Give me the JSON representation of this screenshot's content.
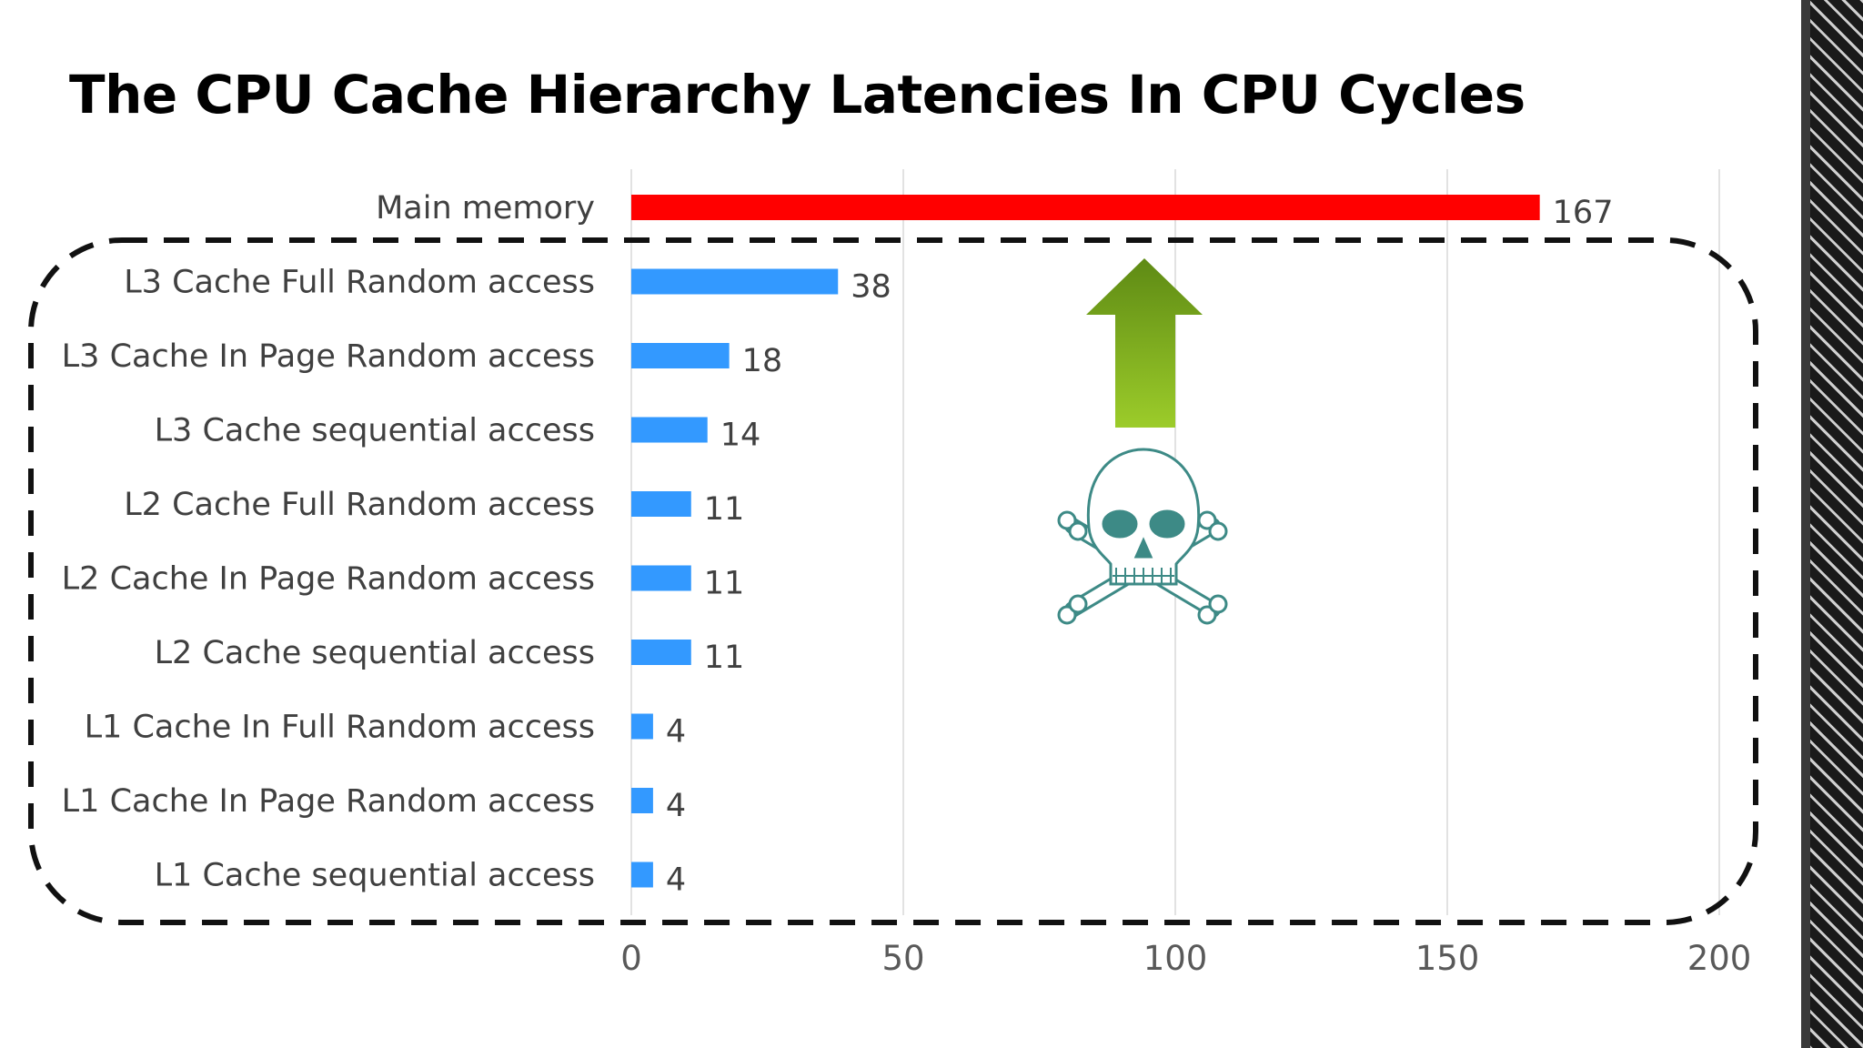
{
  "slide": {
    "title": "The CPU Cache Hierarchy Latencies In CPU Cycles"
  },
  "decorations": {
    "arrow": {
      "name": "up-arrow-icon",
      "color": "#8cbf1f"
    },
    "skull": {
      "name": "skull-and-crossbones-icon",
      "color": "#3d8a86"
    },
    "dashed_group": {
      "name": "cache-group-dashed-outline",
      "color": "#111111"
    }
  },
  "chart_data": {
    "type": "bar",
    "orientation": "horizontal",
    "title": "",
    "xlabel": "",
    "ylabel": "",
    "xlim": [
      0,
      200
    ],
    "x_ticks": [
      0,
      50,
      100,
      150,
      200
    ],
    "grid": true,
    "legend": "none",
    "categories": [
      "Main memory",
      "L3 Cache Full Random access",
      "L3 Cache In Page Random access",
      "L3 Cache sequential access",
      "L2 Cache Full Random access",
      "L2 Cache In Page Random access",
      "L2 Cache sequential access",
      "L1 Cache In Full Random access",
      "L1 Cache In Page Random access",
      "L1 Cache sequential access"
    ],
    "values": [
      167,
      38,
      18,
      14,
      11,
      11,
      11,
      4,
      4,
      4
    ],
    "colors": [
      "#ff0000",
      "#3399ff",
      "#3399ff",
      "#3399ff",
      "#3399ff",
      "#3399ff",
      "#3399ff",
      "#3399ff",
      "#3399ff",
      "#3399ff"
    ],
    "data_labels": [
      "167",
      "38",
      "18",
      "14",
      "11",
      "11",
      "11",
      "4",
      "4",
      "4"
    ]
  }
}
